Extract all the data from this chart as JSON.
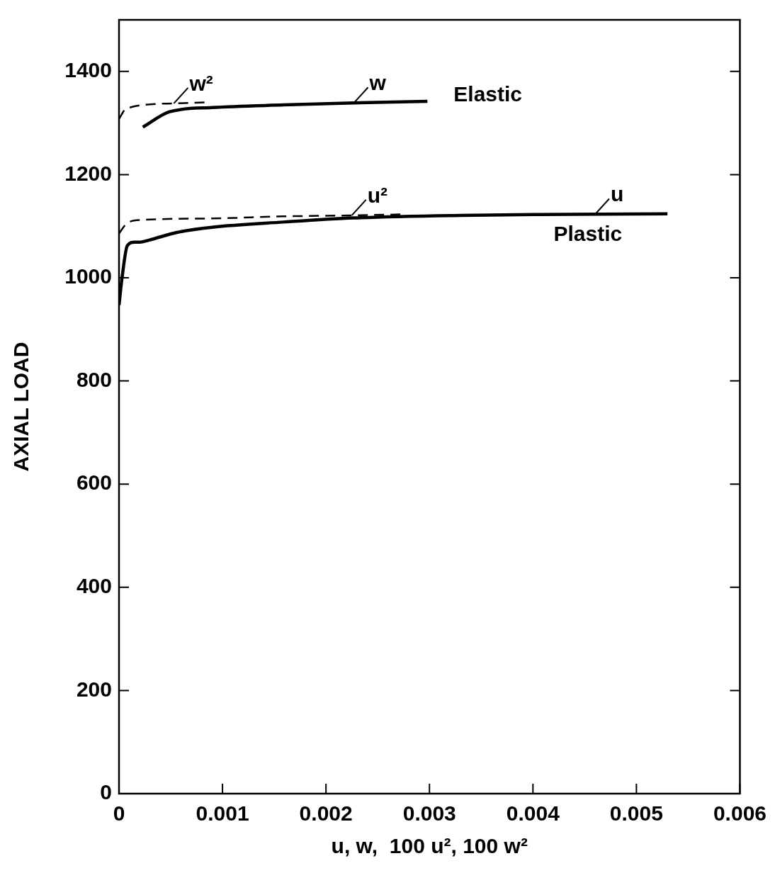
{
  "chart_data": {
    "type": "line",
    "xlabel": "u, w,  100 u², 100 w²",
    "ylabel": "AXIAL LOAD",
    "xlim": [
      0,
      0.006
    ],
    "xticks": [
      0,
      0.001,
      0.002,
      0.003,
      0.004,
      0.005,
      0.006
    ],
    "ylim": [
      0,
      1500
    ],
    "yticks": [
      0,
      200,
      400,
      600,
      800,
      1000,
      1200,
      1400
    ],
    "grid": false,
    "legend": false,
    "marker": "none",
    "series": [
      {
        "color": "#000000",
        "line_style": "dashed",
        "x": [
          0,
          7e-05,
          0.00053,
          0.00085
        ],
        "values": [
          1308,
          1328,
          1338,
          1340
        ]
      },
      {
        "color": "#000000",
        "line_style": "solid",
        "x": [
          0.00023,
          0.00049,
          0.0009,
          0.00159,
          0.00227,
          0.00298
        ],
        "values": [
          1292,
          1322,
          1330,
          1335,
          1339,
          1342
        ]
      },
      {
        "color": "#000000",
        "line_style": "dashed",
        "x": [
          0,
          8e-05,
          0.00022,
          0.0009,
          0.00159,
          0.00227,
          0.00277
        ],
        "values": [
          1086,
          1106,
          1112,
          1115,
          1119,
          1121,
          1123
        ]
      },
      {
        "color": "#000000",
        "line_style": "solid",
        "x": [
          0,
          3e-05,
          8e-05,
          0.00015,
          0.0002,
          0.00029,
          0.00056,
          0.0009,
          0.00159,
          0.00227,
          0.0033,
          0.00432,
          0.0053
        ],
        "values": [
          947,
          1001,
          1062,
          1069,
          1069,
          1073,
          1088,
          1098,
          1108,
          1116,
          1121,
          1123,
          1124
        ]
      }
    ],
    "annotations": [
      {
        "text": "w²",
        "x": 0.00053,
        "y": 1338
      },
      {
        "text": "w",
        "x": 0.00227,
        "y": 1339
      },
      {
        "text": "u²",
        "x": 0.00225,
        "y": 1121
      },
      {
        "text": "u",
        "x": 0.0046,
        "y": 1123
      },
      "Elastic",
      "Plastic"
    ]
  }
}
